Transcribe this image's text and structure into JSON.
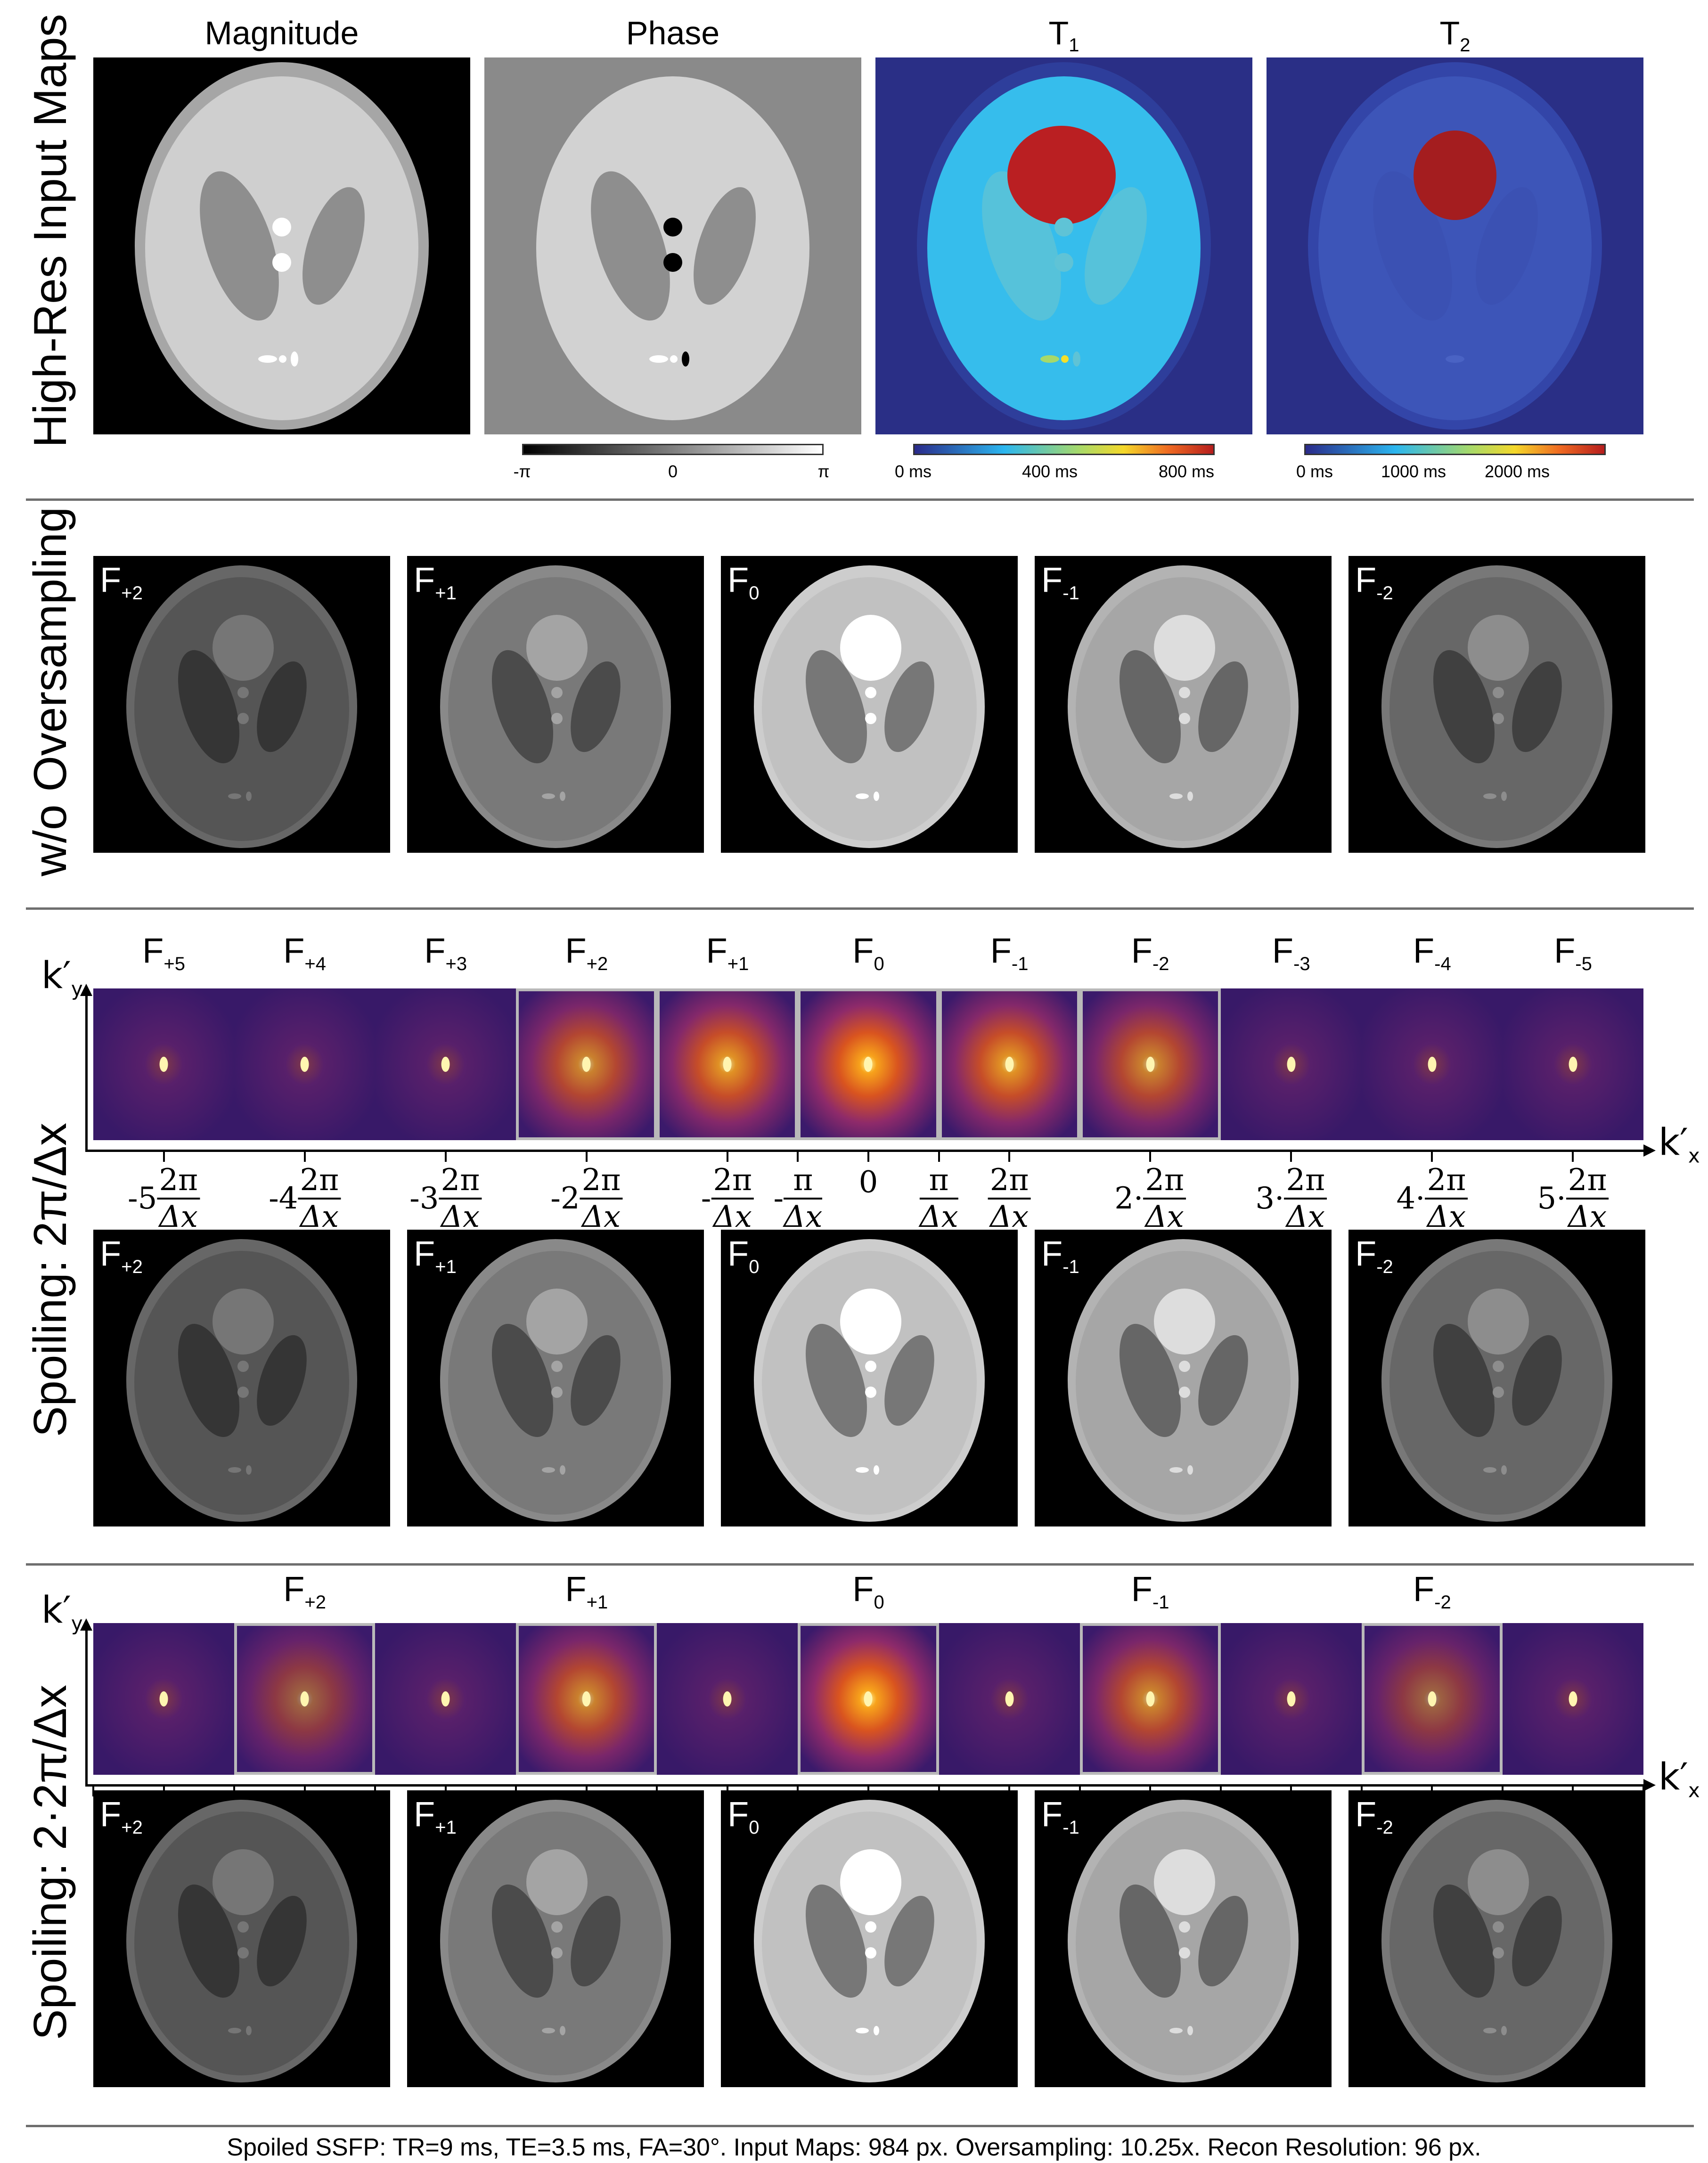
{
  "top": {
    "row_label": "High-Res Input Maps",
    "titles": {
      "magnitude": "Magnitude",
      "phase": "Phase",
      "t1": "T",
      "t1_sub": "1",
      "t2": "T",
      "t2_sub": "2"
    },
    "colorbars": {
      "phase": {
        "min": "-π",
        "mid": "0",
        "max": "π"
      },
      "t1": {
        "min": "0 ms",
        "mid": "400 ms",
        "max": "800 ms"
      },
      "t2": {
        "min": "0 ms",
        "mid": "1000 ms",
        "max": "2000 ms"
      }
    }
  },
  "noover": {
    "row_label": "w/o Oversampling",
    "panels": [
      {
        "label": "F",
        "sub": "+2",
        "level": 0.25
      },
      {
        "label": "F",
        "sub": "+1",
        "level": 0.45
      },
      {
        "label": "F",
        "sub": "0",
        "level": 0.85
      },
      {
        "label": "F",
        "sub": "-1",
        "level": 0.7
      },
      {
        "label": "F",
        "sub": "-2",
        "level": 0.35
      }
    ]
  },
  "spoil1": {
    "row_label": "Spoiling: 2π/Δx",
    "ky": "k′",
    "ky_sub": "y",
    "kx": "k′",
    "kx_sub": "x",
    "kspace_titles": [
      {
        "label": "F",
        "sub": "+5"
      },
      {
        "label": "F",
        "sub": "+4"
      },
      {
        "label": "F",
        "sub": "+3"
      },
      {
        "label": "F",
        "sub": "+2"
      },
      {
        "label": "F",
        "sub": "+1"
      },
      {
        "label": "F",
        "sub": "0"
      },
      {
        "label": "F",
        "sub": "-1"
      },
      {
        "label": "F",
        "sub": "-2"
      },
      {
        "label": "F",
        "sub": "-3"
      },
      {
        "label": "F",
        "sub": "-4"
      },
      {
        "label": "F",
        "sub": "-5"
      }
    ],
    "tick_labels": [
      {
        "pre": "-5",
        "num": "2π",
        "den": "Δx"
      },
      {
        "pre": "-4",
        "num": "2π",
        "den": "Δx"
      },
      {
        "pre": "-3",
        "num": "2π",
        "den": "Δx"
      },
      {
        "pre": "-2",
        "num": "2π",
        "den": "Δx"
      },
      {
        "pre": "-",
        "num": "2π",
        "den": "Δx"
      },
      {
        "pre": "-",
        "num": "π",
        "den": "Δx"
      },
      {
        "pre": "0",
        "num": "",
        "den": ""
      },
      {
        "pre": "",
        "num": "π",
        "den": "Δx"
      },
      {
        "pre": "",
        "num": "2π",
        "den": "Δx"
      },
      {
        "pre": "2·",
        "num": "2π",
        "den": "Δx"
      },
      {
        "pre": "3·",
        "num": "2π",
        "den": "Δx"
      },
      {
        "pre": "4·",
        "num": "2π",
        "den": "Δx"
      },
      {
        "pre": "5·",
        "num": "2π",
        "den": "Δx"
      }
    ],
    "panels": [
      {
        "label": "F",
        "sub": "+2",
        "level": 0.25
      },
      {
        "label": "F",
        "sub": "+1",
        "level": 0.45
      },
      {
        "label": "F",
        "sub": "0",
        "level": 0.85
      },
      {
        "label": "F",
        "sub": "-1",
        "level": 0.7
      },
      {
        "label": "F",
        "sub": "-2",
        "level": 0.35
      }
    ]
  },
  "spoil2": {
    "row_label": "Spoiling: 2·2π/Δx",
    "ky": "k′",
    "ky_sub": "y",
    "kx": "k′",
    "kx_sub": "x",
    "kspace_titles": [
      {
        "label": "F",
        "sub": "+2"
      },
      {
        "label": "F",
        "sub": "+1"
      },
      {
        "label": "F",
        "sub": "0"
      },
      {
        "label": "F",
        "sub": "-1"
      },
      {
        "label": "F",
        "sub": "-2"
      }
    ],
    "panels": [
      {
        "label": "F",
        "sub": "+2",
        "level": 0.25
      },
      {
        "label": "F",
        "sub": "+1",
        "level": 0.45
      },
      {
        "label": "F",
        "sub": "0",
        "level": 0.85
      },
      {
        "label": "F",
        "sub": "-1",
        "level": 0.7
      },
      {
        "label": "F",
        "sub": "-2",
        "level": 0.35
      }
    ]
  },
  "footer": "Spoiled SSFP: TR=9 ms, TE=3.5 ms, FA=30°. Input Maps: 984 px. Oversampling: 10.25x. Recon Resolution: 96 px."
}
